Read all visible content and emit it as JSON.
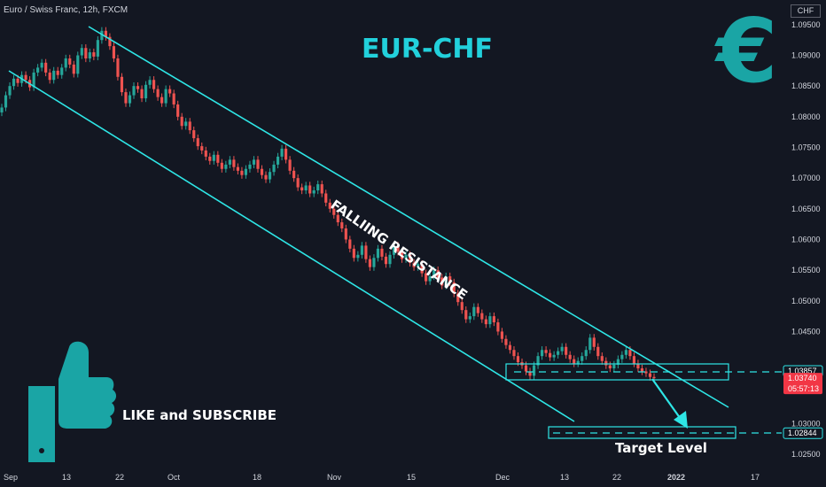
{
  "header": {
    "symbol": "Euro / Swiss Franc, 12h, FXCM",
    "currency": "CHF"
  },
  "annotations": {
    "title": "EUR-CHF",
    "euro_symbol": "€",
    "falling": "FALLIING RESISTANCE",
    "cta": "LIKE and SUBSCRIBE",
    "target": "Target Level"
  },
  "colors": {
    "background": "#131722",
    "up": "#26a69a",
    "down": "#ef5350",
    "channel": "#2ee6e6",
    "accent": "#1aa5a5",
    "text": "#d1d4dc"
  },
  "chart_data": {
    "type": "candlestick",
    "title": "EUR-CHF",
    "yaxis": {
      "ticks": [
        "1.09500",
        "1.09000",
        "1.08500",
        "1.08000",
        "1.07500",
        "1.07000",
        "1.06500",
        "1.06000",
        "1.05500",
        "1.05000",
        "1.04500",
        "1.03000",
        "1.02500"
      ],
      "ylim": [
        1.024,
        1.097
      ]
    },
    "xaxis": {
      "ticks": [
        "Sep",
        "13",
        "22",
        "Oct",
        "18",
        "Nov",
        "15",
        "Dec",
        "13",
        "22",
        "2022",
        "17"
      ]
    },
    "price_labels": [
      {
        "text": "1.03857",
        "value": 1.03857,
        "style": "level"
      },
      {
        "text": "1.03740",
        "sub": "05:57:13",
        "value": 1.0374,
        "style": "current"
      },
      {
        "text": "1.02844",
        "value": 1.02844,
        "style": "level"
      }
    ],
    "closes": [
      1.0815,
      1.0835,
      1.085,
      1.0862,
      1.0855,
      1.0868,
      1.086,
      1.0848,
      1.0872,
      1.088,
      1.0888,
      1.0872,
      1.086,
      1.0875,
      1.0868,
      1.088,
      1.0895,
      1.0885,
      1.087,
      1.09,
      1.0912,
      1.0895,
      1.0905,
      1.0898,
      1.0925,
      1.094,
      1.093,
      1.0915,
      1.0895,
      1.0865,
      1.084,
      1.0822,
      1.0835,
      1.085,
      1.0845,
      1.083,
      1.0852,
      1.086,
      1.0845,
      1.0832,
      1.0822,
      1.0845,
      1.0838,
      1.082,
      1.08,
      1.0785,
      1.0792,
      1.0778,
      1.0765,
      1.0752,
      1.0745,
      1.0735,
      1.0728,
      1.0738,
      1.0725,
      1.0715,
      1.0722,
      1.073,
      1.0718,
      1.0712,
      1.0705,
      1.0715,
      1.0722,
      1.073,
      1.0715,
      1.0705,
      1.0698,
      1.071,
      1.0722,
      1.0735,
      1.0748,
      1.073,
      1.0712,
      1.07,
      1.0685,
      1.068,
      1.0688,
      1.0675,
      1.068,
      1.069,
      1.0675,
      1.066,
      1.065,
      1.064,
      1.0628,
      1.0618,
      1.06,
      1.0585,
      1.057,
      1.0575,
      1.059,
      1.0568,
      1.0555,
      1.057,
      1.0585,
      1.0572,
      1.056,
      1.0575,
      1.059,
      1.058,
      1.0568,
      1.0575,
      1.0562,
      1.0555,
      1.056,
      1.0545,
      1.0532,
      1.054,
      1.055,
      1.0538,
      1.0525,
      1.054,
      1.053,
      1.0512,
      1.0498,
      1.0485,
      1.047,
      1.0475,
      1.049,
      1.048,
      1.047,
      1.0462,
      1.0475,
      1.0465,
      1.045,
      1.0438,
      1.0428,
      1.042,
      1.041,
      1.04,
      1.0395,
      1.0385,
      1.0378,
      1.0395,
      1.041,
      1.042,
      1.0415,
      1.0408,
      1.0412,
      1.0418,
      1.0425,
      1.0412,
      1.0405,
      1.0398,
      1.0402,
      1.041,
      1.042,
      1.044,
      1.0425,
      1.041,
      1.0402,
      1.0395,
      1.039,
      1.0396,
      1.0405,
      1.0412,
      1.042,
      1.041,
      1.0398,
      1.039,
      1.0385,
      1.0382,
      1.0376,
      1.0374
    ]
  }
}
